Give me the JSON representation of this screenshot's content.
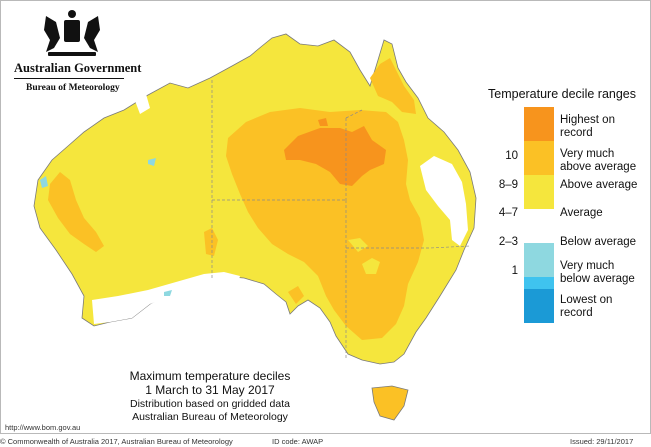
{
  "header": {
    "government": "Australian Government",
    "bureau": "Bureau of Meteorology"
  },
  "legend": {
    "title": "Temperature decile ranges",
    "categories": [
      {
        "label_line1": "Highest on",
        "label_line2": "record",
        "color": "#f7941d",
        "decile": ""
      },
      {
        "label_line1": "Very much",
        "label_line2": "above average",
        "color": "#fbc125",
        "decile": "10"
      },
      {
        "label_line1": "Above average",
        "label_line2": "",
        "color": "#f5e63d",
        "decile": "8–9"
      },
      {
        "label_line1": "Average",
        "label_line2": "",
        "color": "#ffffff",
        "decile": "4–7"
      },
      {
        "label_line1": "Below average",
        "label_line2": "",
        "color": "#8ed8e0",
        "decile": "2–3"
      },
      {
        "label_line1": "Very much",
        "label_line2": "below average",
        "color": "#3fc3ef",
        "decile": "1"
      },
      {
        "label_line1": "Lowest on",
        "label_line2": "record",
        "color": "#1b9ad6",
        "decile": ""
      }
    ]
  },
  "caption": {
    "title": "Maximum temperature deciles",
    "period": "1 March to 31 May 2017",
    "line3": "Distribution based on gridded data",
    "line4": "Australian Bureau of Meteorology"
  },
  "url": "http://www.bom.gov.au",
  "footer": {
    "copyright": "© Commonwealth of Australia 2017, Australian Bureau of Meteorology",
    "id_code": "ID code: AWAP",
    "issued": "Issued: 29/11/2017"
  }
}
